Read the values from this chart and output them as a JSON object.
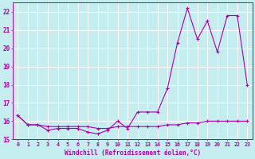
{
  "xlabel": "Windchill (Refroidissement éolien,°C)",
  "background_color": "#c5ecee",
  "line_color": "#aa00aa",
  "grid_color": "#ffffff",
  "x_hours": [
    0,
    1,
    2,
    3,
    4,
    5,
    6,
    7,
    8,
    9,
    10,
    11,
    12,
    13,
    14,
    15,
    16,
    17,
    18,
    19,
    20,
    21,
    22,
    23
  ],
  "temp_line": [
    16.3,
    15.8,
    15.8,
    15.5,
    15.6,
    15.6,
    15.6,
    15.4,
    15.3,
    15.5,
    16.0,
    15.6,
    16.5,
    16.5,
    16.5,
    17.8,
    20.3,
    22.2,
    20.5,
    21.5,
    19.8,
    21.8,
    21.8,
    18.0
  ],
  "windchill_line": [
    16.3,
    15.8,
    15.8,
    15.7,
    15.7,
    15.7,
    15.7,
    15.7,
    15.6,
    15.6,
    15.7,
    15.7,
    15.7,
    15.7,
    15.7,
    15.8,
    15.8,
    15.9,
    15.9,
    16.0,
    16.0,
    16.0,
    16.0,
    16.0
  ],
  "ylim": [
    15.0,
    22.5
  ],
  "xlim_min": -0.5,
  "xlim_max": 23.5,
  "yticks": [
    15,
    16,
    17,
    18,
    19,
    20,
    21,
    22
  ],
  "xticks": [
    0,
    1,
    2,
    3,
    4,
    5,
    6,
    7,
    8,
    9,
    10,
    11,
    12,
    13,
    14,
    15,
    16,
    17,
    18,
    19,
    20,
    21,
    22,
    23
  ],
  "figwidth": 3.2,
  "figheight": 2.0,
  "dpi": 100
}
